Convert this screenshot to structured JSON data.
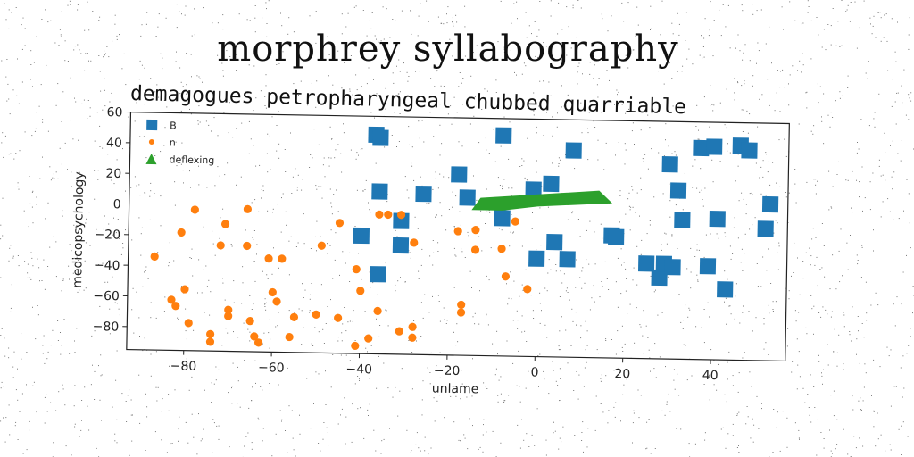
{
  "chart_data": {
    "type": "scatter",
    "title": "morphrey syllabography",
    "subtitle": "demagogues petropharyngeal chubbed quarriable",
    "xlabel": "unlame",
    "ylabel": "medicopsychology",
    "xlim": [
      -93,
      57
    ],
    "ylim": [
      -95,
      60
    ],
    "xticks": [
      -80,
      -60,
      -40,
      -20,
      0,
      20,
      40
    ],
    "yticks": [
      60,
      40,
      20,
      0,
      -20,
      -40,
      -60,
      -80
    ],
    "legend_position": "top-left",
    "series": [
      {
        "name": "B",
        "marker": "square",
        "color": "#1f77b4",
        "points": [
          [
            -37,
            48
          ],
          [
            -36,
            46
          ],
          [
            -8,
            49
          ],
          [
            8,
            40
          ],
          [
            -18,
            23
          ],
          [
            -16,
            8
          ],
          [
            -36,
            11
          ],
          [
            -26,
            10
          ],
          [
            -1,
            14
          ],
          [
            3,
            18
          ],
          [
            -8,
            -5
          ],
          [
            -31,
            -8
          ],
          [
            -40,
            -18
          ],
          [
            -31,
            -24
          ],
          [
            4,
            -20
          ],
          [
            17,
            -15
          ],
          [
            18,
            -16
          ],
          [
            25,
            -33
          ],
          [
            28,
            -42
          ],
          [
            29,
            -33
          ],
          [
            31,
            -35
          ],
          [
            -36,
            -43
          ],
          [
            0,
            -31
          ],
          [
            7,
            -31
          ],
          [
            30,
            32
          ],
          [
            32,
            15
          ],
          [
            33,
            -4
          ],
          [
            37,
            43
          ],
          [
            40,
            44
          ],
          [
            41,
            -3
          ],
          [
            46,
            45
          ],
          [
            48,
            42
          ],
          [
            53,
            7
          ],
          [
            52,
            -9
          ],
          [
            39,
            -34
          ],
          [
            43,
            -49
          ]
        ]
      },
      {
        "name": "n",
        "marker": "circle",
        "color": "#ff7f0e",
        "points": [
          [
            -87,
            -34
          ],
          [
            -78,
            -3
          ],
          [
            -81,
            -18
          ],
          [
            -71,
            -12
          ],
          [
            -72,
            -26
          ],
          [
            -66,
            -2
          ],
          [
            -66,
            -26
          ],
          [
            -61,
            -34
          ],
          [
            -58,
            -34
          ],
          [
            -49,
            -25
          ],
          [
            -45,
            -10
          ],
          [
            -41,
            -40
          ],
          [
            -40,
            -54
          ],
          [
            -36,
            -4
          ],
          [
            -34,
            -4
          ],
          [
            -31,
            -4
          ],
          [
            -28,
            -22
          ],
          [
            -18,
            -14
          ],
          [
            -14,
            -13
          ],
          [
            -14,
            -26
          ],
          [
            -8,
            -25
          ],
          [
            -5,
            -7
          ],
          [
            -7,
            -43
          ],
          [
            -2,
            -51
          ],
          [
            -17,
            -62
          ],
          [
            -17,
            -67
          ],
          [
            -36,
            -67
          ],
          [
            -60,
            -56
          ],
          [
            -59,
            -62
          ],
          [
            -55,
            -72
          ],
          [
            -50,
            -70
          ],
          [
            -45,
            -72
          ],
          [
            -80,
            -55
          ],
          [
            -83,
            -62
          ],
          [
            -82,
            -66
          ],
          [
            -70,
            -68
          ],
          [
            -70,
            -72
          ],
          [
            -65,
            -75
          ],
          [
            -79,
            -77
          ],
          [
            -74,
            -84
          ],
          [
            -74,
            -89
          ],
          [
            -64,
            -85
          ],
          [
            -63,
            -89
          ],
          [
            -56,
            -85
          ],
          [
            -41,
            -90
          ],
          [
            -38,
            -85
          ],
          [
            -31,
            -80
          ],
          [
            -28,
            -84
          ],
          [
            -28,
            -77
          ]
        ]
      },
      {
        "name": "deflexing",
        "marker": "triangle",
        "color": "#2ca02c",
        "path": [
          [
            -15,
            0
          ],
          [
            -13,
            8
          ],
          [
            14,
            14
          ],
          [
            17,
            6
          ],
          [
            0,
            3
          ],
          [
            -8,
            0
          ]
        ]
      }
    ]
  }
}
